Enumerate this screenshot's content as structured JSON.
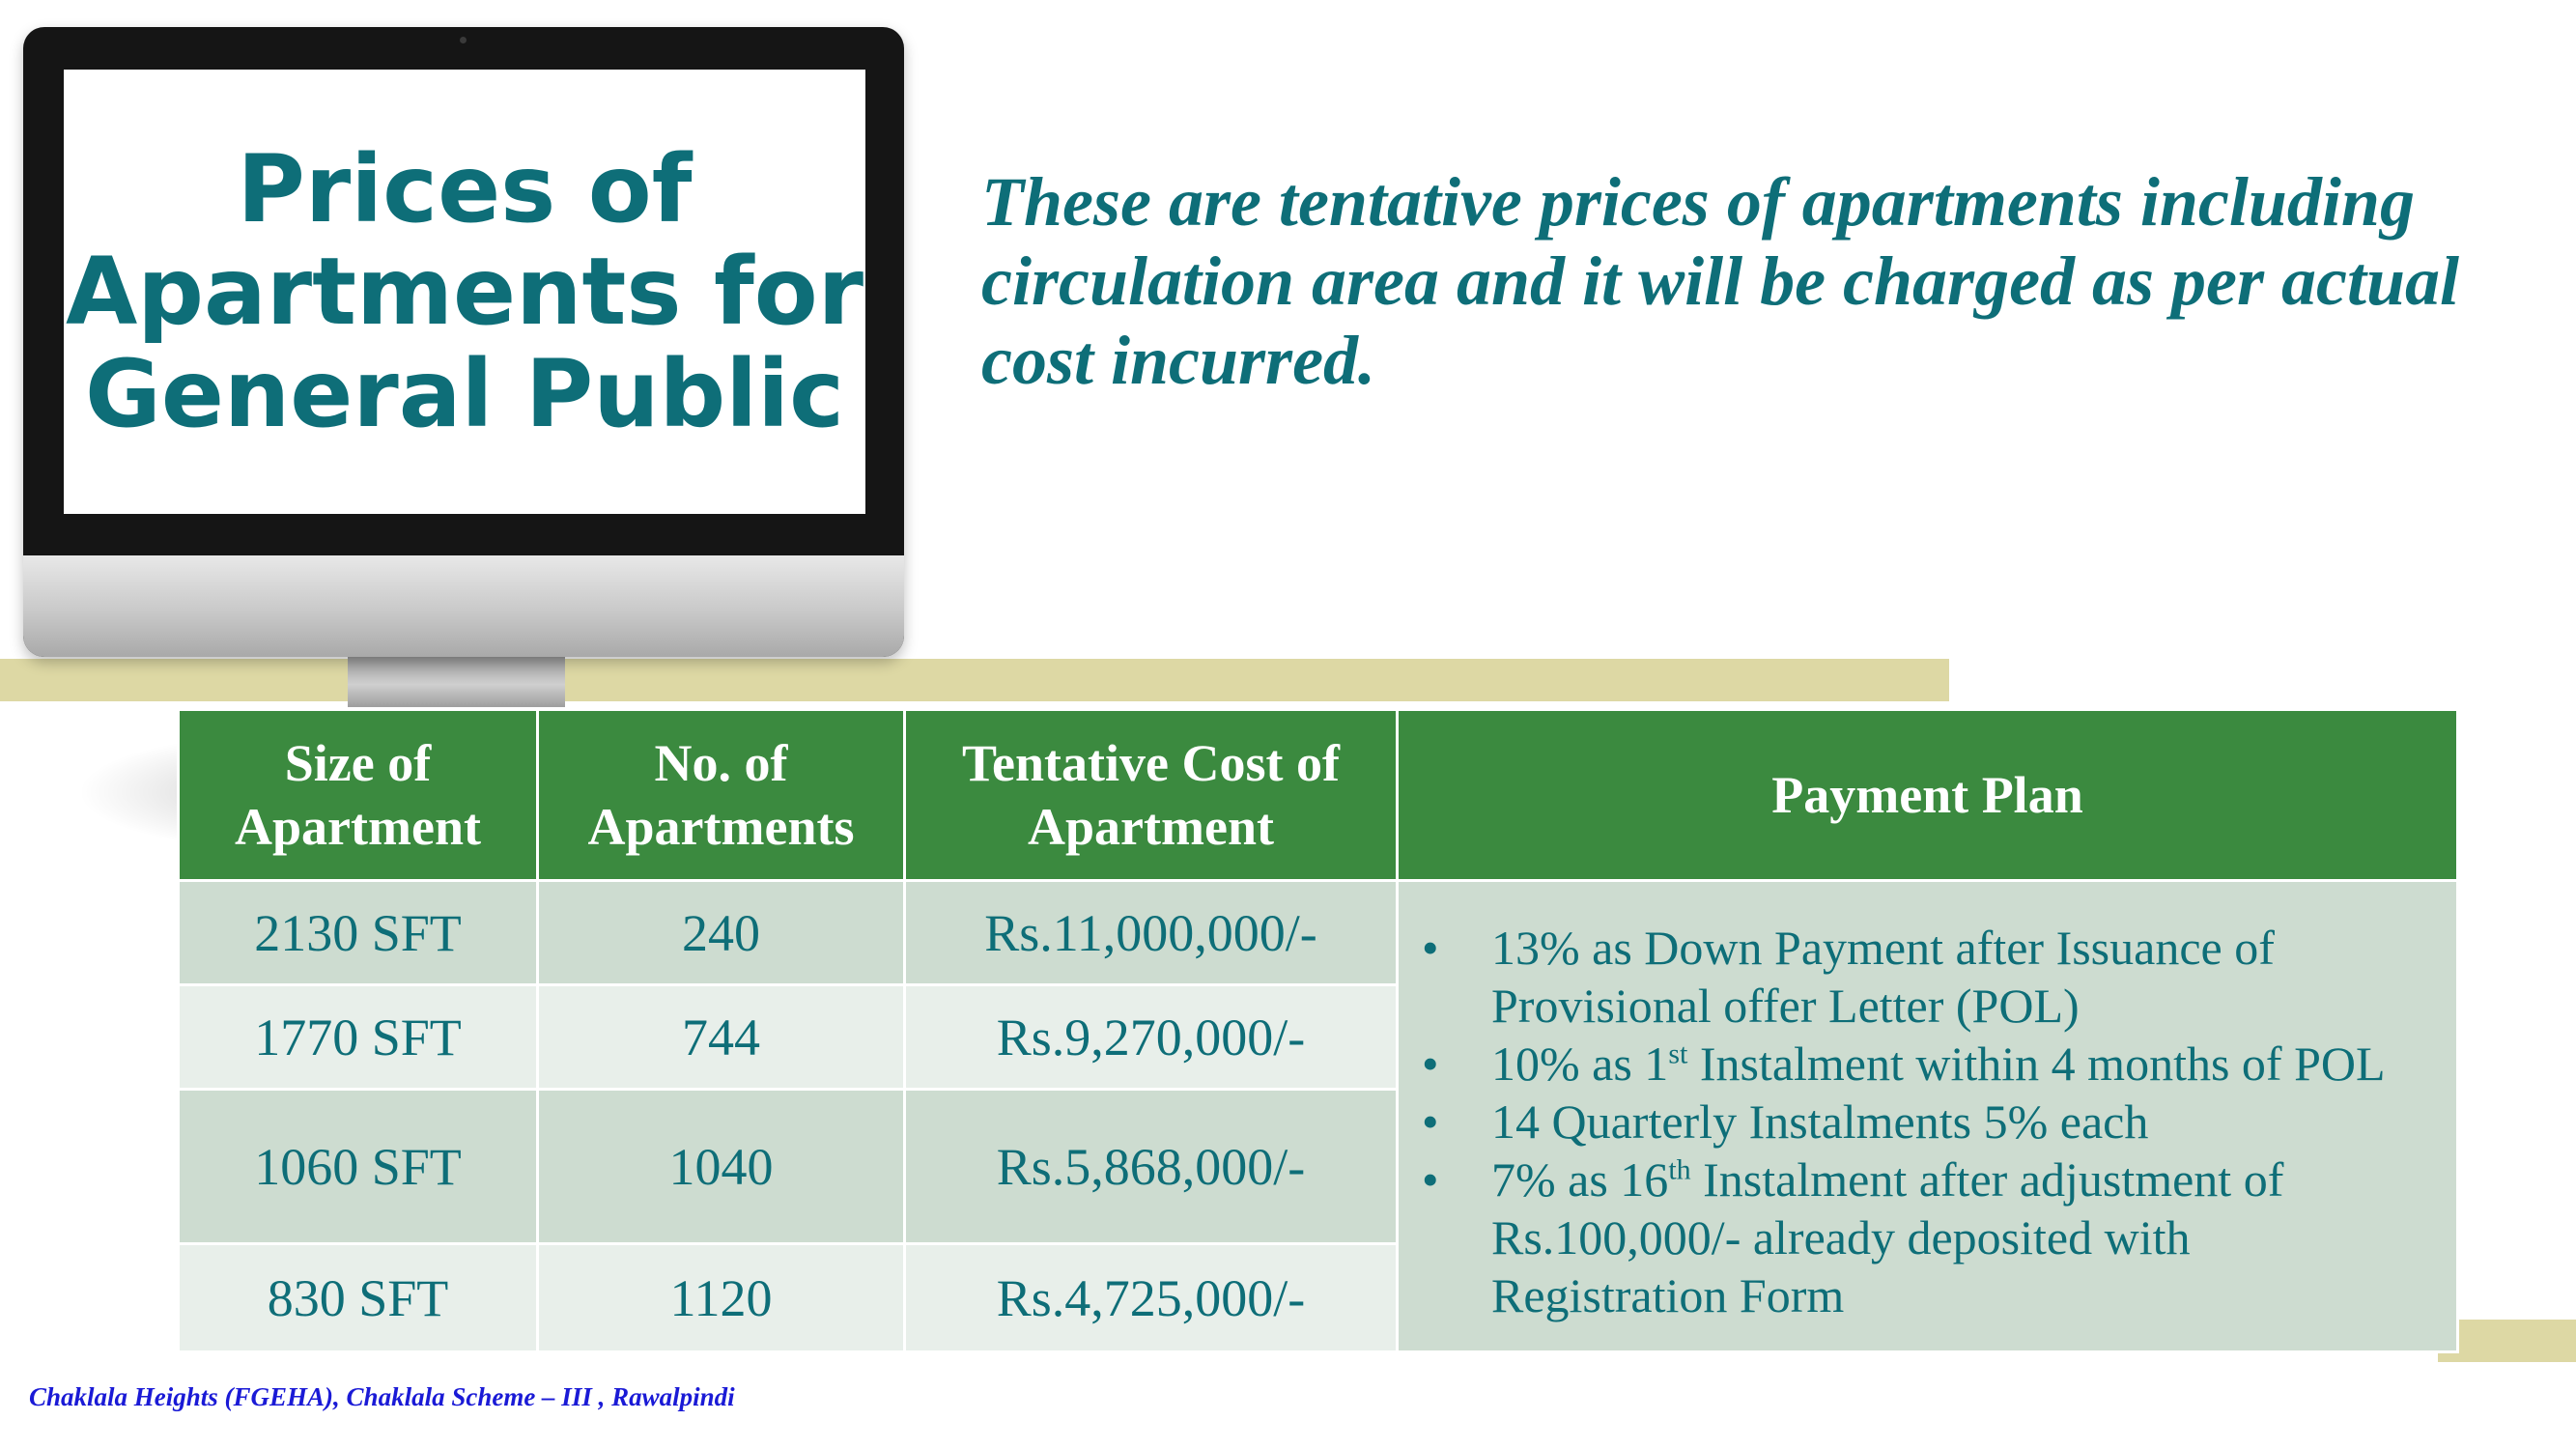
{
  "screen": {
    "title_line1": "Prices of",
    "title_line2": "Apartments for",
    "title_line3": "General Public"
  },
  "intro": {
    "text": "These are tentative prices of apartments including circulation area and it will be charged as per actual cost incurred."
  },
  "table": {
    "headers": {
      "size": [
        "Size of",
        "Apartment"
      ],
      "count": [
        "No. of",
        "Apartments"
      ],
      "cost": [
        "Tentative Cost of",
        "Apartment"
      ],
      "plan": "Payment Plan"
    },
    "rows": [
      {
        "size": "2130 SFT",
        "count": "240",
        "cost": "Rs.11,000,000/-"
      },
      {
        "size": "1770 SFT",
        "count": "744",
        "cost": "Rs.9,270,000/-"
      },
      {
        "size": "1060 SFT",
        "count": "1040",
        "cost": "Rs.5,868,000/-"
      },
      {
        "size": "830 SFT",
        "count": "1120",
        "cost": "Rs.4,725,000/-"
      }
    ],
    "payment_plan": {
      "bullet": "•",
      "item1": "13% as Down Payment after  Issuance of Provisional offer Letter (POL)",
      "item2_pre": "10% as 1",
      "item2_sup": "st",
      "item2_post": " Instalment within 4 months of POL",
      "item3": "14 Quarterly Instalments 5% each",
      "item4_pre": "7% as 16",
      "item4_sup": "th",
      "item4_post": " Instalment after adjustment of Rs.100,000/- already deposited with Registration Form"
    }
  },
  "footer": {
    "caption": "Chaklala Heights (FGEHA), Chaklala Scheme – III , Rawalpindi"
  },
  "colors": {
    "teal_text": "#0e6e78",
    "header_green": "#3b8a3f",
    "row_dark": "#cddcd0",
    "row_light": "#e8efea",
    "band": "#ddd8a4",
    "footer_blue": "#1a1ad6"
  }
}
